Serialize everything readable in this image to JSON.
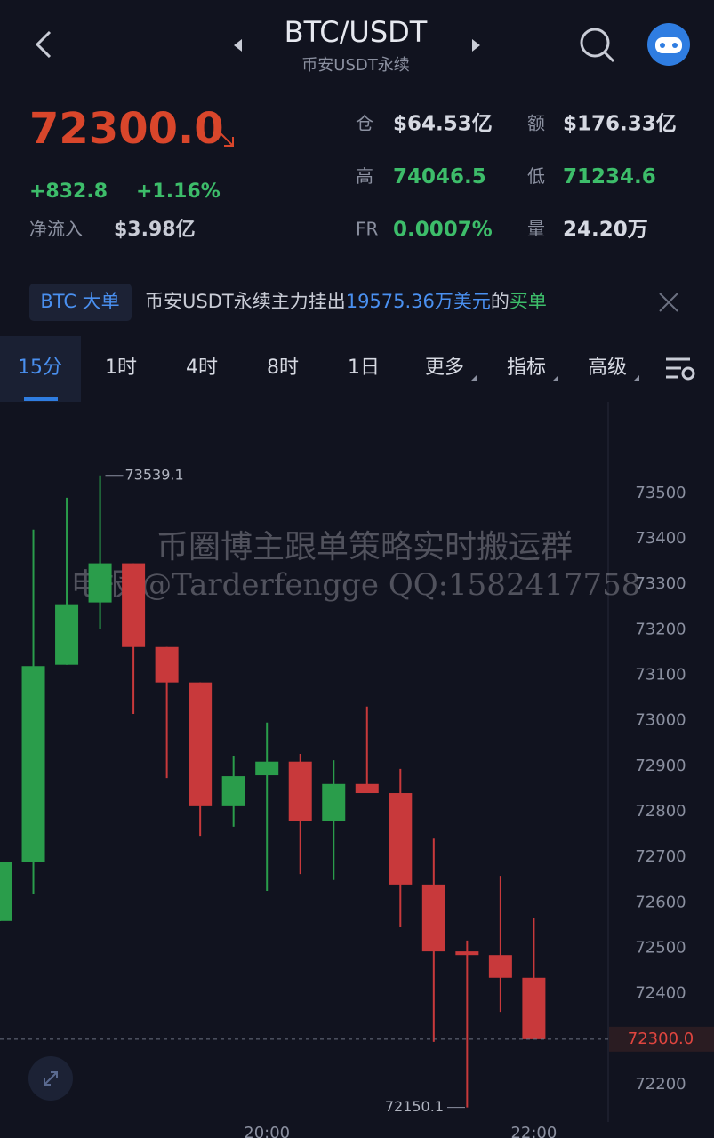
{
  "header": {
    "title": "BTC/USDT",
    "subtitle": "币安USDT永续"
  },
  "ticker": {
    "price": "72300.0",
    "change": "+832.8",
    "change_pct": "+1.16%",
    "net_inflow_label": "净流入",
    "net_inflow": "$3.98亿",
    "stats": [
      {
        "label": "仓",
        "value": "$64.53亿"
      },
      {
        "label": "额",
        "value": "$176.33亿"
      },
      {
        "label": "高",
        "value": "74046.5"
      },
      {
        "label": "低",
        "value": "71234.6"
      },
      {
        "label": "FR",
        "value": "0.0007%"
      },
      {
        "label": "量",
        "value": "24.20万"
      }
    ]
  },
  "banner": {
    "tag": "BTC 大单",
    "text": "币安USDT永续主力挂出",
    "amount": "19575.36万美元",
    "mid": "的",
    "side": "买单"
  },
  "tabs": [
    "15分",
    "1时",
    "4时",
    "8时",
    "1日",
    "更多",
    "指标",
    "高级"
  ],
  "watermark": [
    "币圈博主跟单策略实时搬运群",
    "电报:@Tarderfengge QQ:1582417758"
  ],
  "chart_data": {
    "type": "candlestick",
    "categories": [
      null,
      null,
      null,
      null,
      null,
      null,
      null,
      null,
      "20:00",
      null,
      null,
      null,
      null,
      null,
      null,
      null,
      "22:00"
    ],
    "open": [
      72560,
      72690,
      73123,
      73260,
      73346,
      73162,
      73084,
      72812,
      72880,
      72910,
      72779,
      72861,
      72841,
      72640,
      72493,
      72485,
      72435
    ],
    "high": [
      72690,
      73420,
      73490,
      73539.1,
      73346,
      73162,
      73084,
      72923,
      72996,
      72927,
      72913,
      73031,
      72894,
      72741,
      72517,
      72659,
      72567
    ],
    "low": [
      72560,
      72620,
      73123,
      73201,
      73015,
      72874,
      72747,
      72767,
      72626,
      72663,
      72650,
      72841,
      72546,
      72294,
      72150.1,
      72360,
      72300
    ],
    "close": [
      72690,
      73120,
      73256,
      73346,
      73162,
      73084,
      72812,
      72878,
      72910,
      72779,
      72861,
      72841,
      72640,
      72493,
      72485,
      72435,
      72300
    ],
    "up_color": "#2a9d4b",
    "down_color": "#c8393b",
    "ylim": [
      72118,
      73695
    ],
    "yticks": [
      72200,
      72300,
      72400,
      72500,
      72600,
      72700,
      72800,
      72900,
      73000,
      73100,
      73200,
      73300,
      73400,
      73500
    ],
    "current_price": {
      "value": 72300,
      "label": "72300.0"
    }
  }
}
